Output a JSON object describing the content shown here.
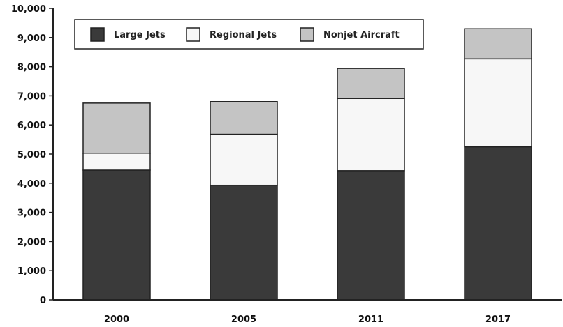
{
  "chart_data": {
    "type": "bar",
    "stacked": true,
    "categories": [
      "2000",
      "2005",
      "2011",
      "2017"
    ],
    "series": [
      {
        "name": "Large Jets",
        "values": [
          4450,
          3930,
          4430,
          5250
        ],
        "color": "#3a3a3a"
      },
      {
        "name": "Regional Jets",
        "values": [
          580,
          1750,
          2480,
          3020
        ],
        "color": "#f7f7f7"
      },
      {
        "name": "Nonjet Aircraft",
        "values": [
          1720,
          1120,
          1030,
          1030
        ],
        "color": "#c4c4c4"
      }
    ],
    "ylim": [
      0,
      10000
    ],
    "yticks": [
      "0",
      "1,000",
      "2,000",
      "3,000",
      "4,000",
      "5,000",
      "6,000",
      "7,000",
      "8,000",
      "9,000",
      "10,000"
    ],
    "title": "",
    "xlabel": "",
    "ylabel": "",
    "legend": {
      "position": "top-left",
      "entries": [
        "Large Jets",
        "Regional Jets",
        "Nonjet Aircraft"
      ]
    },
    "grid": false
  }
}
